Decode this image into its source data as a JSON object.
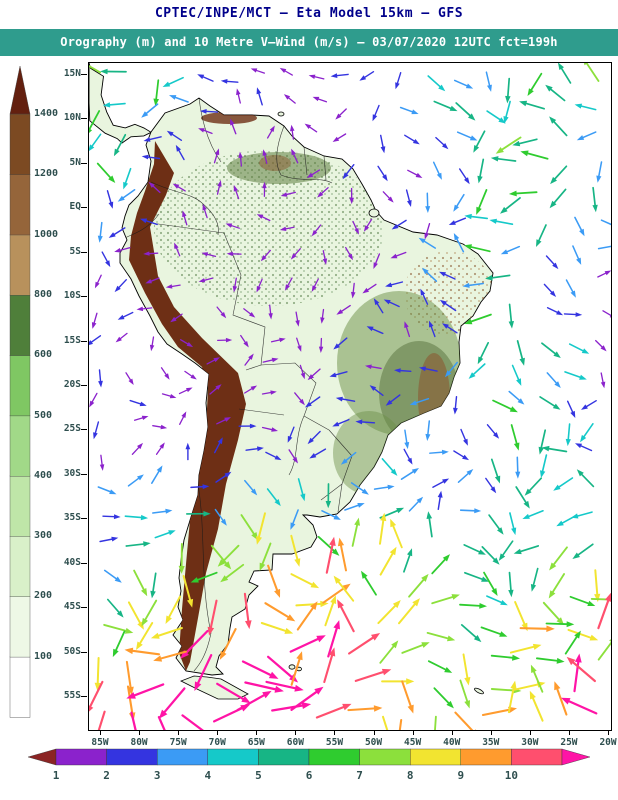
{
  "header": {
    "title_line1": "CPTEC/INPE/MCT —  Eta Model 15km — GFS",
    "title_line2": "Orography (m) and 10 Metre V—Wind (m/s) — 03/07/2020 12UTC fct=199h",
    "title_color": "#00008b",
    "strip_bg": "#2f9c8d",
    "strip_text_color": "#ffffff"
  },
  "map": {
    "lat_labels": [
      "15N",
      "10N",
      "5N",
      "EQ",
      "5S",
      "10S",
      "15S",
      "20S",
      "25S",
      "30S",
      "35S",
      "40S",
      "45S",
      "50S",
      "55S"
    ],
    "lon_labels": [
      "85W",
      "80W",
      "75W",
      "70W",
      "65W",
      "60W",
      "55W",
      "50W",
      "45W",
      "40W",
      "35W",
      "30W",
      "25W",
      "20W"
    ],
    "label_color": "#2f4f4f",
    "land_color": "#e9f5df",
    "andes_color": "#6e2f15",
    "coast_color": "#000000"
  },
  "orography_colorbar": {
    "labels": [
      "100",
      "200",
      "300",
      "400",
      "500",
      "600",
      "800",
      "1000",
      "1200",
      "1400"
    ],
    "band_colors": [
      "#ffffff",
      "#eef8e6",
      "#d9f0c9",
      "#bfe6a8",
      "#a1d988",
      "#7fc763",
      "#4f7f3a",
      "#b8915c",
      "#95653a",
      "#7c4a22"
    ],
    "arrow_color": "#63200f",
    "label_color": "#2f4f4f"
  },
  "wind_colorbar": {
    "labels": [
      "1",
      "2",
      "3",
      "4",
      "5",
      "6",
      "7",
      "8",
      "9",
      "10"
    ],
    "segment_colors": [
      "#8b22cc",
      "#3434e0",
      "#3b9bf5",
      "#15c9c9",
      "#17b585",
      "#2fcc2f",
      "#8ce03c",
      "#f2e430",
      "#ff9b2e",
      "#ff4f6e"
    ],
    "left_cap_color": "#8b2424",
    "right_cap_color": "#ff14a6",
    "label_color": "#2f4f4f"
  },
  "wind_field": {
    "seed": 12,
    "cols": 19,
    "rows": 23,
    "palette": [
      "#8b22cc",
      "#3434e0",
      "#3b9bf5",
      "#15c9c9",
      "#17b585",
      "#2fcc2f",
      "#8ce03c",
      "#f2e430",
      "#ff9b2e",
      "#ff4f6e"
    ],
    "overflow_color": "#ff14a6"
  }
}
